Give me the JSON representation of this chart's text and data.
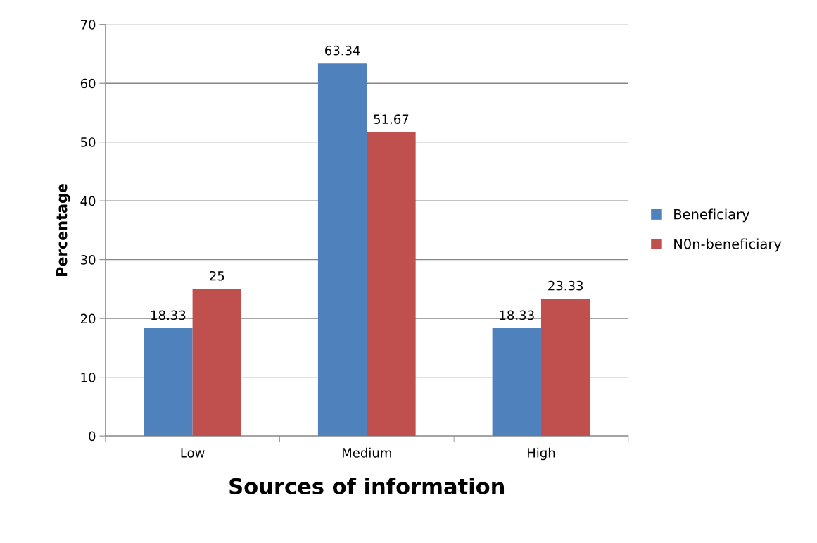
{
  "chart_data": {
    "type": "bar",
    "xlabel": "Sources of information",
    "ylabel": "Percentage",
    "categories": [
      "Low",
      "Medium",
      "High"
    ],
    "series": [
      {
        "name": "Beneficiary",
        "color": "#4f81bd",
        "values": [
          18.33,
          63.34,
          18.33
        ]
      },
      {
        "name": "N0n-beneficiary",
        "color": "#c0504d",
        "values": [
          25,
          51.67,
          23.33
        ]
      }
    ],
    "ylim": [
      0,
      70
    ],
    "yticks": [
      0,
      10,
      20,
      30,
      40,
      50,
      60,
      70
    ],
    "grid": "y",
    "legend": "right",
    "data_labels": true
  }
}
